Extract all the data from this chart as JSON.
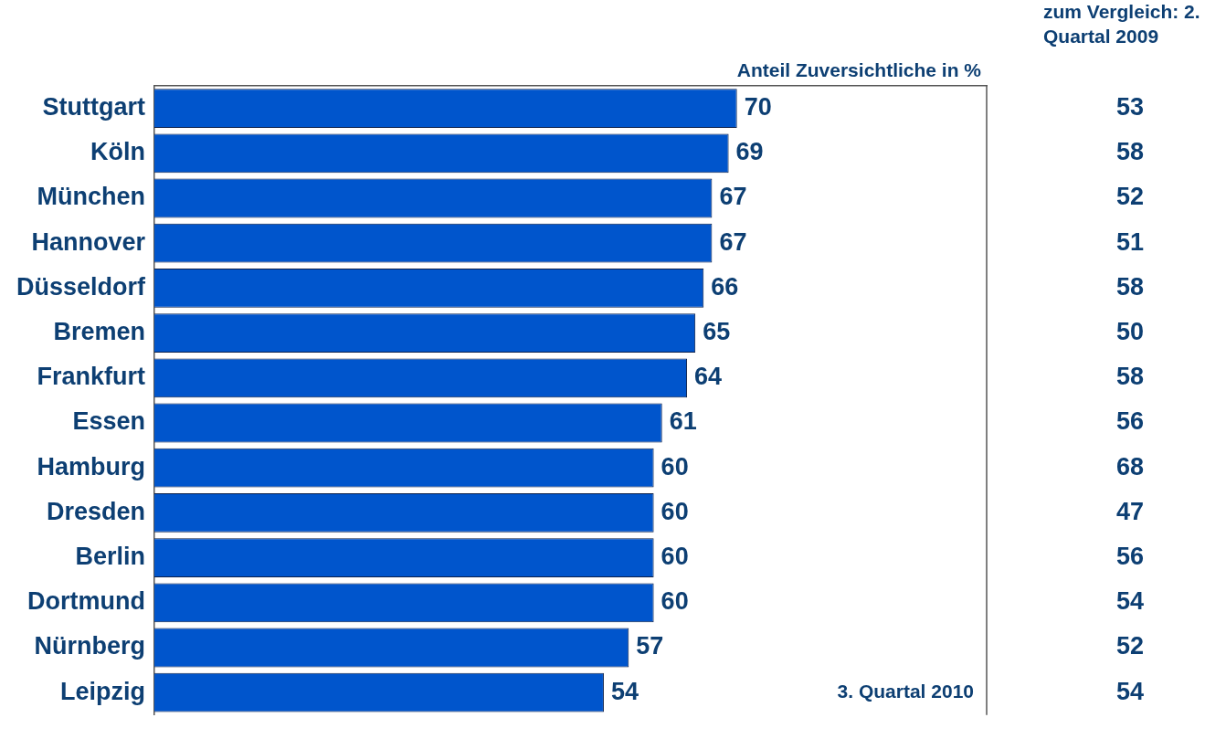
{
  "chart_data": {
    "type": "bar",
    "orientation": "horizontal",
    "xlabel": "Anteil Zuversichtliche in %",
    "categories": [
      "Stuttgart",
      "Köln",
      "München",
      "Hannover",
      "Düsseldorf",
      "Bremen",
      "Frankfurt",
      "Essen",
      "Hamburg",
      "Dresden",
      "Berlin",
      "Dortmund",
      "Nürnberg",
      "Leipzig"
    ],
    "values": [
      70,
      69,
      67,
      67,
      66,
      65,
      64,
      61,
      60,
      60,
      60,
      60,
      57,
      54
    ],
    "color": "#0055cc",
    "xlim": [
      0,
      100
    ],
    "data_labels": true,
    "tick_labels": "y",
    "grid": false,
    "legend": false,
    "annotations": [
      "zum Vergleich: 2. Quartal 2009",
      "3. Quartal 2010",
      "53",
      "58",
      "52",
      "51",
      "58",
      "50",
      "58",
      "56",
      "68",
      "47",
      "56",
      "54",
      "52",
      "54"
    ]
  }
}
